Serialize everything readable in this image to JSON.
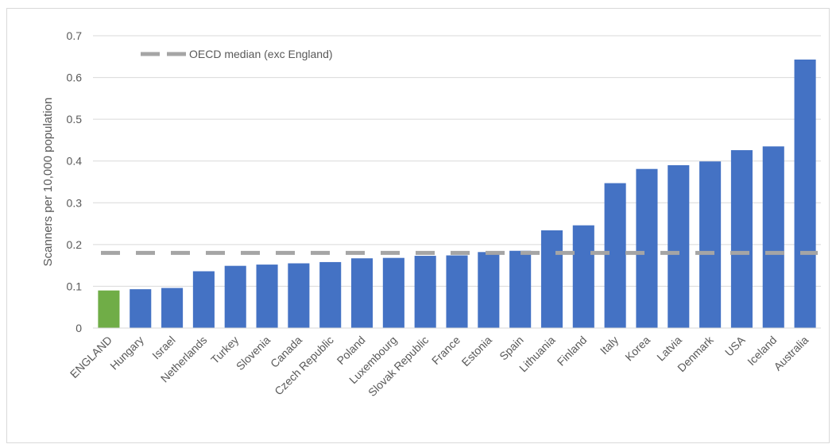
{
  "chart_data": {
    "type": "bar",
    "ylabel": "Scanners per 10,000 population",
    "xlabel": "",
    "ylim": [
      0,
      0.7
    ],
    "yticks": [
      "0",
      "0.1",
      "0.2",
      "0.3",
      "0.4",
      "0.5",
      "0.6",
      "0.7"
    ],
    "grid": true,
    "legend_position": "top-left",
    "categories": [
      "ENGLAND",
      "Hungary",
      "Israel",
      "Netherlands",
      "Turkey",
      "Slovenia",
      "Canada",
      "Czech Republic",
      "Poland",
      "Luxembourg",
      "Slovak Republic",
      "France",
      "Estonia",
      "Spain",
      "Lithuania",
      "Finland",
      "Italy",
      "Korea",
      "Latvia",
      "Denmark",
      "USA",
      "Iceland",
      "Australia"
    ],
    "values": [
      0.09,
      0.093,
      0.096,
      0.136,
      0.149,
      0.152,
      0.155,
      0.158,
      0.167,
      0.168,
      0.173,
      0.174,
      0.182,
      0.185,
      0.234,
      0.246,
      0.347,
      0.381,
      0.39,
      0.399,
      0.426,
      0.435,
      0.643
    ],
    "highlight_category": "ENGLAND",
    "colors": {
      "bar": "#4472c4",
      "highlight": "#70ad47",
      "median_line": "#a5a5a5",
      "grid": "#d9d9d9"
    },
    "reference_line": {
      "name": "OECD median (exc England)",
      "value": 0.18
    }
  }
}
